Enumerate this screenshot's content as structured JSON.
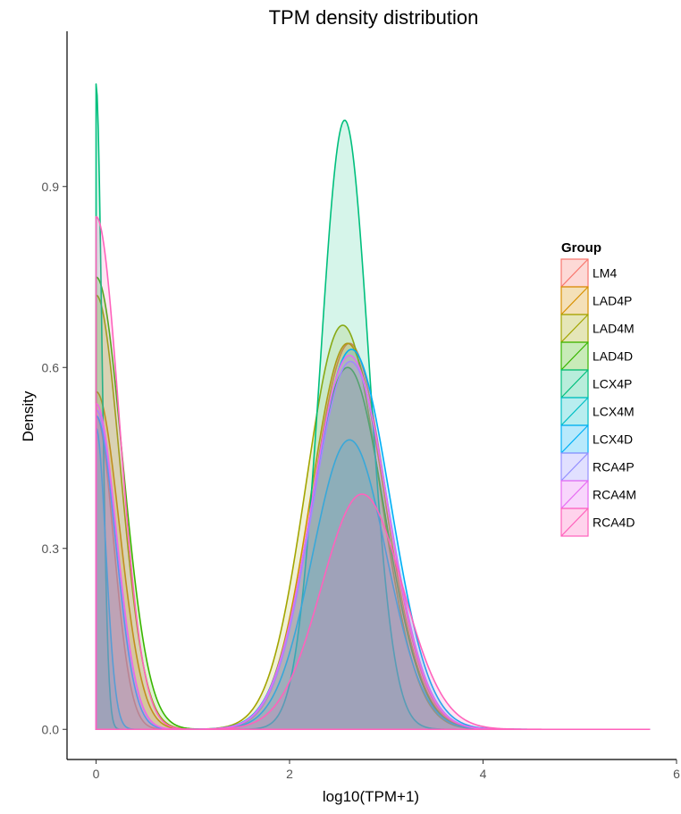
{
  "chart_data": {
    "type": "area",
    "title": "TPM density distribution",
    "xlabel": "log10(TPM+1)",
    "ylabel": "Density",
    "xlim": [
      -0.3,
      6
    ],
    "ylim": [
      -0.05,
      1.15
    ],
    "x_ticks": [
      0,
      2,
      4,
      6
    ],
    "y_ticks": [
      0.0,
      0.3,
      0.6,
      0.9
    ],
    "x_tick_labels": [
      "0",
      "2",
      "4",
      "6"
    ],
    "y_tick_labels": [
      "0.0",
      "0.3",
      "0.6",
      "0.9"
    ],
    "grid": false,
    "legend": {
      "title": "Group",
      "position": "right"
    },
    "series": [
      {
        "name": "LM4",
        "color": "#F8766D",
        "peak0": 0.52,
        "w0": 0.18,
        "peak1": 0.64,
        "mu1": 2.62,
        "s1": 0.38
      },
      {
        "name": "LAD4P",
        "color": "#D89000",
        "peak0": 0.56,
        "w0": 0.24,
        "peak1": 0.64,
        "mu1": 2.6,
        "s1": 0.38
      },
      {
        "name": "LAD4M",
        "color": "#A3A500",
        "peak0": 0.72,
        "w0": 0.25,
        "peak1": 0.67,
        "mu1": 2.55,
        "s1": 0.38
      },
      {
        "name": "LAD4D",
        "color": "#39B600",
        "peak0": 0.75,
        "w0": 0.27,
        "peak1": 0.6,
        "mu1": 2.6,
        "s1": 0.38
      },
      {
        "name": "LCX4P",
        "color": "#00BF7D",
        "peak0": 1.07,
        "w0": 0.06,
        "peak1": 1.01,
        "mu1": 2.57,
        "s1": 0.25
      },
      {
        "name": "LCX4M",
        "color": "#00BFC4",
        "peak0": 0.5,
        "w0": 0.1,
        "peak1": 0.48,
        "mu1": 2.62,
        "s1": 0.38
      },
      {
        "name": "LCX4D",
        "color": "#00B0F6",
        "peak0": 0.52,
        "w0": 0.2,
        "peak1": 0.63,
        "mu1": 2.64,
        "s1": 0.4
      },
      {
        "name": "RCA4P",
        "color": "#9590FF",
        "peak0": 0.53,
        "w0": 0.21,
        "peak1": 0.61,
        "mu1": 2.63,
        "s1": 0.39
      },
      {
        "name": "RCA4M",
        "color": "#E76BF3",
        "peak0": 0.54,
        "w0": 0.21,
        "peak1": 0.62,
        "mu1": 2.62,
        "s1": 0.39
      },
      {
        "name": "RCA4D",
        "color": "#FF62BC",
        "peak0": 0.85,
        "w0": 0.24,
        "peak1": 0.39,
        "mu1": 2.75,
        "s1": 0.42
      }
    ]
  }
}
